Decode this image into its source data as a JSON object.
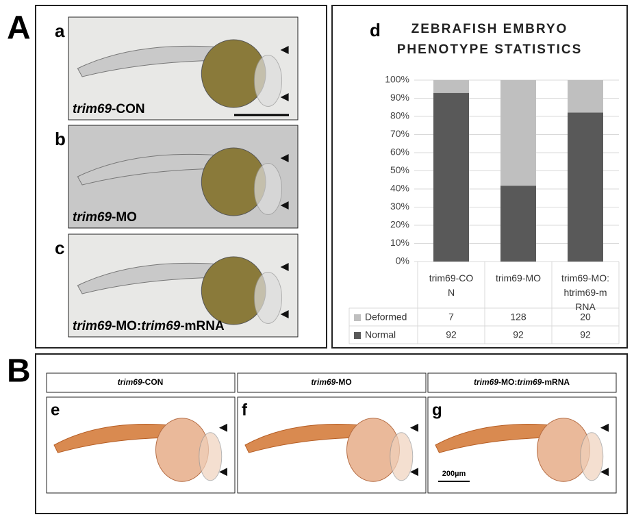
{
  "panel_labels": [
    "A",
    "B"
  ],
  "panel_a": {
    "images": [
      {
        "letter": "a",
        "caption": [
          "trim69",
          "-CON"
        ]
      },
      {
        "letter": "b",
        "caption": [
          "trim69",
          "-MO"
        ]
      },
      {
        "letter": "c",
        "caption": [
          "trim69",
          "-MO:",
          "trim69",
          "-mRNA"
        ]
      }
    ]
  },
  "chart_data": {
    "type": "bar",
    "stacked": "percent",
    "letter": "d",
    "title": "ZEBRAFISH EMBRYO PHENOTYPE STATISTICS",
    "categories": [
      "trim69-CON",
      "trim69-MO",
      "trim69-MO:htrim69-mRNA"
    ],
    "series": [
      {
        "name": "Deformed",
        "color": "#bfbfbf",
        "values": [
          7,
          128,
          20
        ]
      },
      {
        "name": "Normal",
        "color": "#595959",
        "values": [
          92,
          92,
          92
        ]
      }
    ],
    "ylim": [
      0,
      100
    ],
    "yticks": [
      {
        "value": 0,
        "label": "0%"
      },
      {
        "value": 10,
        "label": "10%"
      },
      {
        "value": 20,
        "label": "20%"
      },
      {
        "value": 30,
        "label": "30%"
      },
      {
        "value": 40,
        "label": "40%"
      },
      {
        "value": 50,
        "label": "50%"
      },
      {
        "value": 60,
        "label": "60%"
      },
      {
        "value": 70,
        "label": "70%"
      },
      {
        "value": 80,
        "label": "80%"
      },
      {
        "value": 90,
        "label": "90%"
      },
      {
        "value": 100,
        "label": "100%"
      }
    ],
    "grid": true
  },
  "panel_b": {
    "images": [
      {
        "letter": "e",
        "caption": [
          "trim69",
          "-CON"
        ]
      },
      {
        "letter": "f",
        "caption": [
          "trim69",
          "-MO"
        ]
      },
      {
        "letter": "g",
        "caption": [
          "trim69",
          "-MO:",
          "trim69",
          "-mRNA"
        ]
      }
    ],
    "scale_bar": "200µm"
  }
}
